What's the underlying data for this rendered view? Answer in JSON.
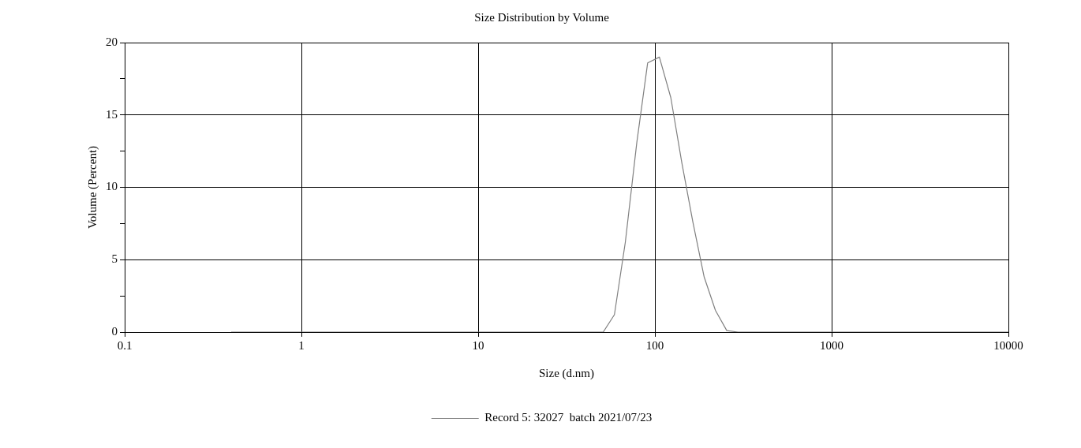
{
  "chart_data": {
    "type": "line",
    "title": "Size Distribution by Volume",
    "xlabel": "Size (d.nm)",
    "ylabel": "Volume (Percent)",
    "log": "x",
    "grid": true,
    "legend": "bottom",
    "marker": "none",
    "line_style": "solid",
    "xlim": [
      0.1,
      10000
    ],
    "xticks": [
      0.1,
      1,
      10,
      100,
      1000,
      10000
    ],
    "ylim": [
      0,
      20
    ],
    "yticks": [
      0,
      {
        "value": 2.5,
        "label": null
      },
      5,
      {
        "value": 7.5,
        "label": null
      },
      10,
      {
        "value": 12.5,
        "label": null
      },
      15,
      {
        "value": 17.5,
        "label": null
      },
      20
    ],
    "series": [
      {
        "name": "Record 5: 32027  batch 2021/07/23",
        "color": "#808080",
        "x": [
          0.4,
          51,
          59,
          68,
          79,
          91,
          106,
          123,
          142,
          164,
          190,
          220,
          255,
          295,
          10000
        ],
        "values": [
          0,
          0,
          1.2,
          6.2,
          13.1,
          18.6,
          19.0,
          16.2,
          11.7,
          7.6,
          3.8,
          1.5,
          0.1,
          0,
          0
        ]
      }
    ]
  }
}
